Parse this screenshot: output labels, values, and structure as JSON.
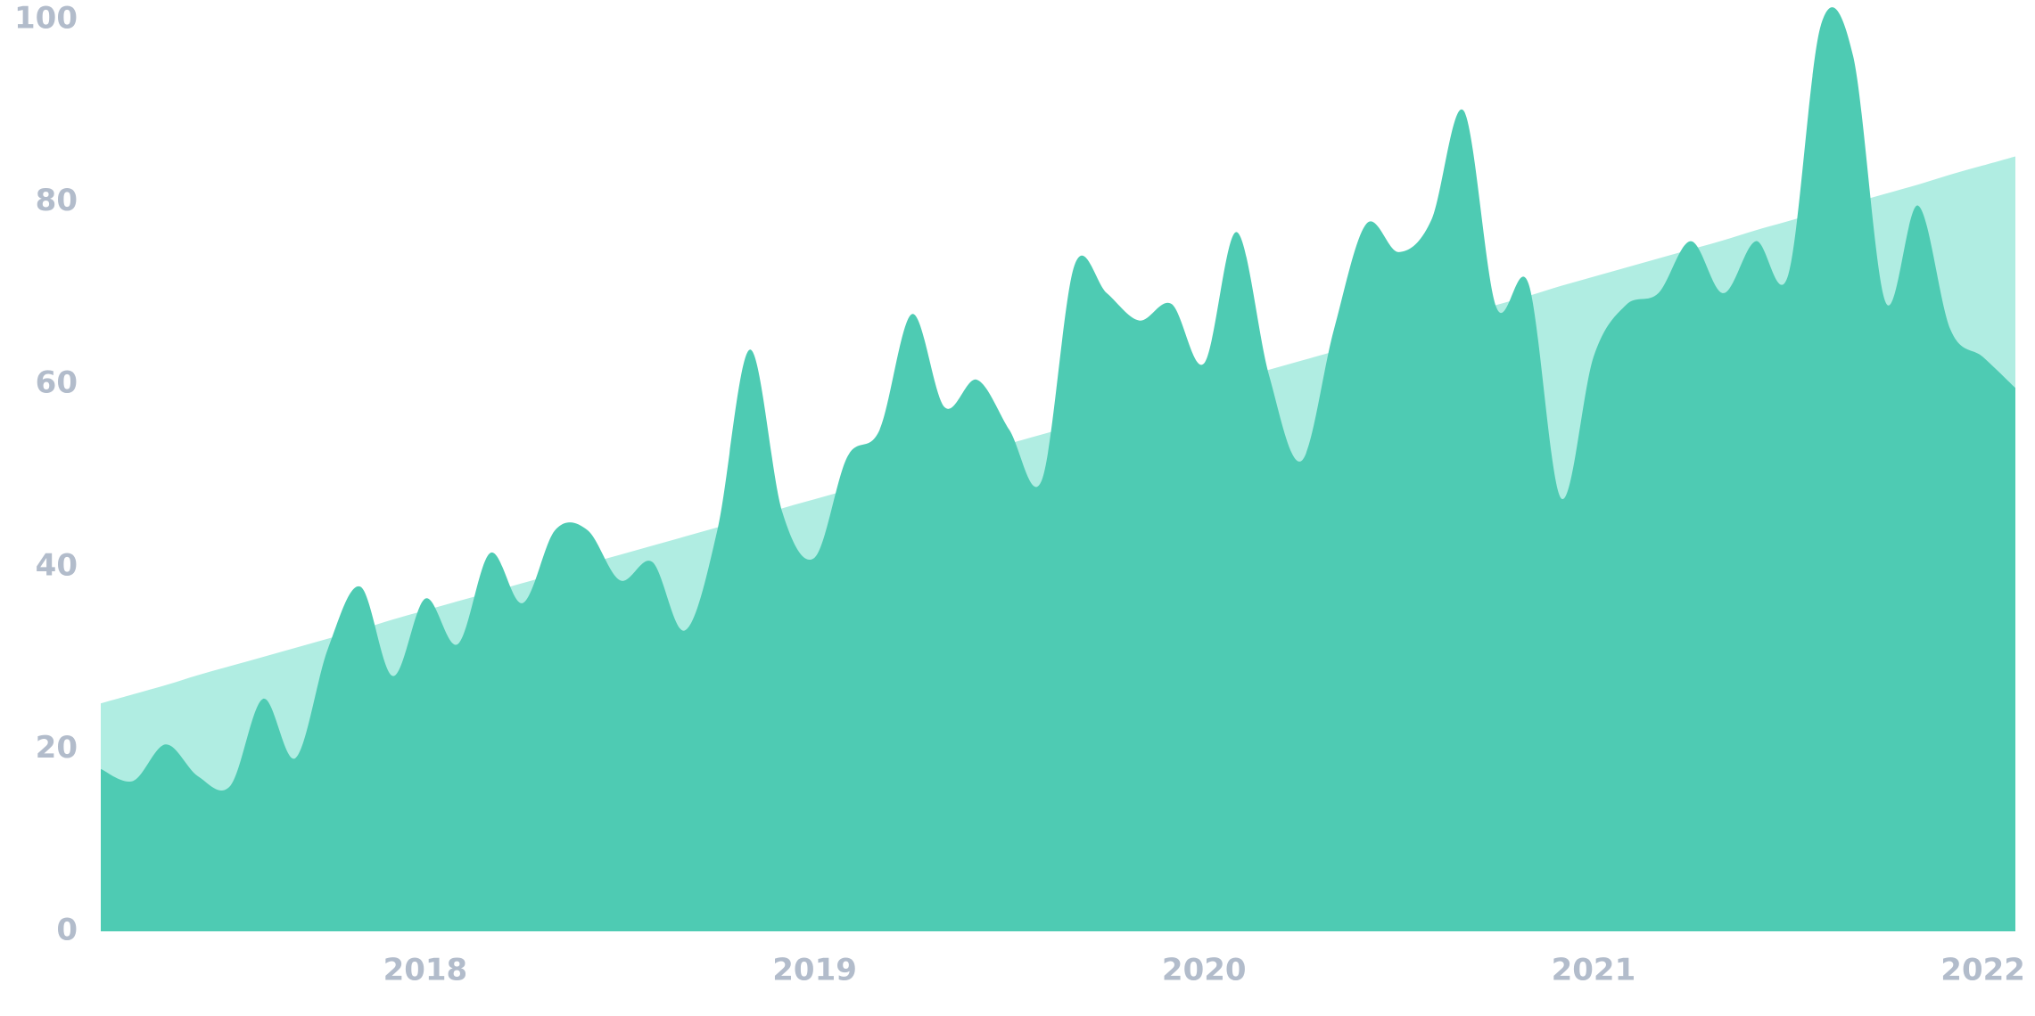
{
  "chart_data": {
    "type": "area",
    "categories": [
      null,
      null,
      null,
      null,
      null,
      null,
      null,
      null,
      null,
      null,
      "2018",
      null,
      null,
      null,
      null,
      null,
      null,
      null,
      null,
      null,
      null,
      null,
      "2019",
      null,
      null,
      null,
      null,
      null,
      null,
      null,
      null,
      null,
      null,
      null,
      "2020",
      null,
      null,
      null,
      null,
      null,
      null,
      null,
      null,
      null,
      null,
      null,
      "2021",
      null,
      null,
      null,
      null,
      null,
      null,
      null,
      null,
      null,
      null,
      null,
      "2022",
      null
    ],
    "series": [
      {
        "color": "#b0ede2",
        "values": [
          25.0,
          26.0,
          27.0,
          28.1,
          29.1,
          30.1,
          31.1,
          32.1,
          33.1,
          34.2,
          35.2,
          36.2,
          37.2,
          38.2,
          39.2,
          40.3,
          41.3,
          42.3,
          43.3,
          44.3,
          45.3,
          46.4,
          47.4,
          48.4,
          49.4,
          50.4,
          51.4,
          52.5,
          53.5,
          54.5,
          55.5,
          56.5,
          57.5,
          58.6,
          59.6,
          60.6,
          61.6,
          62.6,
          63.6,
          64.7,
          65.7,
          66.7,
          67.7,
          68.7,
          69.7,
          70.8,
          71.8,
          72.8,
          73.8,
          74.8,
          75.8,
          76.9,
          77.9,
          78.9,
          79.9,
          80.9,
          81.9,
          83.0,
          84.0,
          85.0
        ]
      },
      {
        "color": "#4ecbb3",
        "values": [
          17.8,
          16.5,
          20.5,
          17,
          16,
          25.5,
          19,
          31,
          37.8,
          28,
          36.5,
          31.5,
          41.5,
          36,
          44,
          44,
          38.5,
          40.5,
          33,
          44,
          63.8,
          46,
          41,
          52,
          55,
          67.7,
          57.5,
          60.5,
          55,
          49.5,
          73,
          70,
          67,
          68.8,
          62.3,
          76.7,
          61,
          51.6,
          66,
          77.6,
          74.5,
          78,
          90,
          68.5,
          71,
          47.5,
          63,
          68.7,
          70,
          75.7,
          70,
          75.7,
          72,
          99.3,
          96,
          69,
          79.6,
          66,
          63,
          59.6
        ]
      }
    ],
    "ylim": [
      0,
      100
    ],
    "yticks": [
      0,
      20,
      40,
      60,
      80,
      100
    ],
    "grid": false
  }
}
